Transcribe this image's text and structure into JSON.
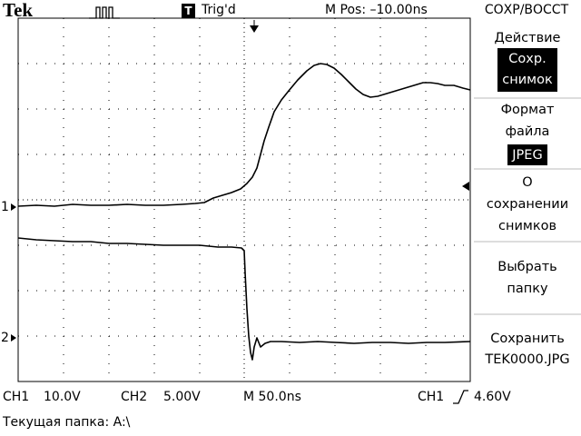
{
  "header": {
    "brand": "Tek",
    "trigger_icon": "T",
    "trigger_status": "Trig'd",
    "position": "M Pos: –10.00ns",
    "menu_title": "СОХР/ВОССТ"
  },
  "menu": {
    "action_label": "Действие",
    "action_value": [
      "Сохр.",
      "снимок"
    ],
    "format_label": [
      "Формат",
      "файла"
    ],
    "format_value": "JPEG",
    "about": [
      "О",
      "сохранении",
      "снимков"
    ],
    "select_folder": [
      "Выбрать",
      "папку"
    ],
    "save": [
      "Сохранить",
      "TEK0000.JPG"
    ]
  },
  "markers": {
    "ch1": "1",
    "ch2": "2"
  },
  "status": {
    "ch1": "CH1",
    "ch1_volts": "10.0V",
    "ch2": "CH2",
    "ch2_volts": "5.00V",
    "timebase": "M 50.0ns",
    "trigger_source": "CH1",
    "trigger_level": "4.60V",
    "folder": "Текущая папка: A:\\"
  }
}
